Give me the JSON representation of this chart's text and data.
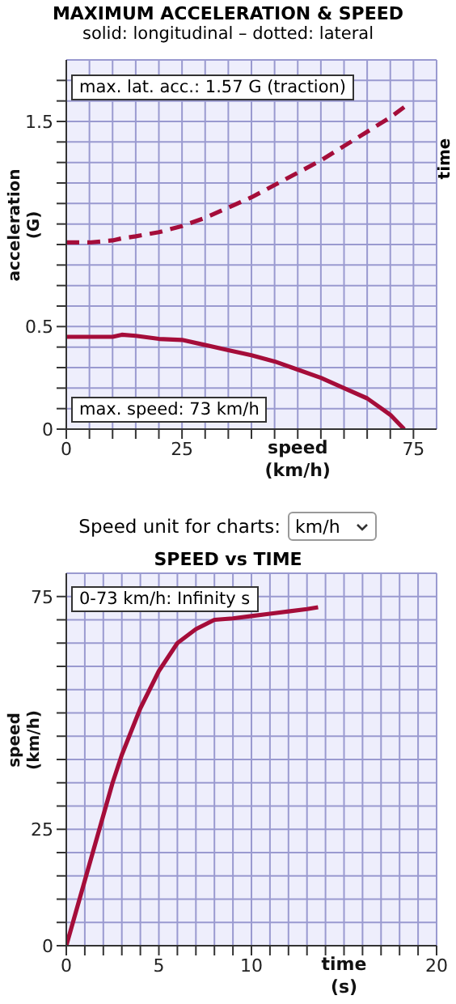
{
  "chart_data": [
    {
      "type": "line",
      "title": "MAXIMUM ACCELERATION & SPEED",
      "subtitle": "solid: longitudinal – dotted: lateral",
      "xlabel": "speed (km/h)",
      "ylabel": "acceleration (G)",
      "y2label": "time",
      "annotations": [
        "max. lat. acc.: 1.57 G (traction)",
        "max. speed: 73 km/h"
      ],
      "x": [
        0,
        5,
        10,
        12,
        15,
        20,
        25,
        30,
        35,
        40,
        45,
        50,
        55,
        60,
        65,
        70,
        73
      ],
      "series": [
        {
          "color": "#a50d3a",
          "line_style": "solid",
          "values": [
            0.45,
            0.45,
            0.45,
            0.46,
            0.455,
            0.44,
            0.435,
            0.41,
            0.385,
            0.36,
            0.33,
            0.29,
            0.25,
            0.2,
            0.15,
            0.07,
            0
          ]
        },
        {
          "color": "#a50d3a",
          "line_style": "dashed",
          "values": [
            0.91,
            0.91,
            0.92,
            0.93,
            0.94,
            0.96,
            0.99,
            1.03,
            1.08,
            1.13,
            1.19,
            1.25,
            1.31,
            1.38,
            1.45,
            1.52,
            1.57
          ]
        }
      ],
      "xlim": [
        0,
        80
      ],
      "xticks": [
        0,
        {
          "value": 5,
          "label": null
        },
        {
          "value": 10,
          "label": null
        },
        {
          "value": 15,
          "label": null
        },
        {
          "value": 20,
          "label": null
        },
        25,
        {
          "value": 30,
          "label": null
        },
        {
          "value": 35,
          "label": null
        },
        {
          "value": 40,
          "label": null
        },
        {
          "value": 45,
          "label": null
        },
        {
          "value": 50,
          "label": null
        },
        {
          "value": 55,
          "label": null
        },
        {
          "value": 60,
          "label": null
        },
        {
          "value": 65,
          "label": null
        },
        {
          "value": 70,
          "label": null
        },
        75
      ],
      "ylim": [
        0,
        1.8
      ],
      "yticks": [
        0,
        {
          "value": 0.1,
          "label": null
        },
        {
          "value": 0.2,
          "label": null
        },
        {
          "value": 0.3,
          "label": null
        },
        {
          "value": 0.4,
          "label": null
        },
        0.5,
        {
          "value": 0.6,
          "label": null
        },
        {
          "value": 0.7,
          "label": null
        },
        {
          "value": 0.8,
          "label": null
        },
        {
          "value": 0.9,
          "label": null
        },
        {
          "value": 1,
          "label": null
        },
        {
          "value": 1.1,
          "label": null
        },
        {
          "value": 1.2,
          "label": null
        },
        {
          "value": 1.3,
          "label": null
        },
        {
          "value": 1.4,
          "label": null
        },
        1.5,
        {
          "value": 1.6,
          "label": null
        },
        {
          "value": 1.7,
          "label": null
        }
      ],
      "grid": true
    },
    {
      "type": "line",
      "title": "SPEED vs TIME",
      "xlabel": "time (s)",
      "ylabel": "speed (km/h)",
      "annotations": [
        "Speed unit for charts:",
        "km/h",
        "0-73 km/h: Infinity s"
      ],
      "x": [
        0,
        0.5,
        1,
        1.5,
        2,
        2.5,
        3,
        3.5,
        4,
        4.5,
        5,
        5.5,
        6,
        7,
        8,
        9,
        10,
        11,
        12,
        13,
        13.6
      ],
      "series": [
        {
          "color": "#a50d3a",
          "values": [
            0,
            7,
            14,
            21,
            28,
            35,
            41,
            46,
            51,
            55,
            59,
            62,
            65,
            68,
            70,
            70.3,
            70.8,
            71.3,
            71.8,
            72.3,
            72.7
          ]
        }
      ],
      "xlim": [
        0,
        20
      ],
      "xticks": [
        0,
        {
          "value": 1,
          "label": null
        },
        {
          "value": 2,
          "label": null
        },
        {
          "value": 3,
          "label": null
        },
        {
          "value": 4,
          "label": null
        },
        5,
        {
          "value": 6,
          "label": null
        },
        {
          "value": 7,
          "label": null
        },
        {
          "value": 8,
          "label": null
        },
        {
          "value": 9,
          "label": null
        },
        10,
        {
          "value": 11,
          "label": null
        },
        {
          "value": 12,
          "label": null
        },
        {
          "value": 13,
          "label": null
        },
        {
          "value": 14,
          "label": null
        },
        {
          "value": 15,
          "label": null
        },
        {
          "value": 16,
          "label": null
        },
        {
          "value": 17,
          "label": null
        },
        {
          "value": 18,
          "label": null
        },
        {
          "value": 19,
          "label": null
        },
        20
      ],
      "ylim": [
        0,
        80
      ],
      "yticks": [
        0,
        {
          "value": 5,
          "label": null
        },
        {
          "value": 10,
          "label": null
        },
        {
          "value": 15,
          "label": null
        },
        {
          "value": 20,
          "label": null
        },
        25,
        {
          "value": 30,
          "label": null
        },
        {
          "value": 35,
          "label": null
        },
        {
          "value": 40,
          "label": null
        },
        {
          "value": 45,
          "label": null
        },
        {
          "value": 50,
          "label": null
        },
        {
          "value": 55,
          "label": null
        },
        {
          "value": 60,
          "label": null
        },
        {
          "value": 65,
          "label": null
        },
        {
          "value": 70,
          "label": null
        },
        75
      ],
      "grid": true
    }
  ]
}
